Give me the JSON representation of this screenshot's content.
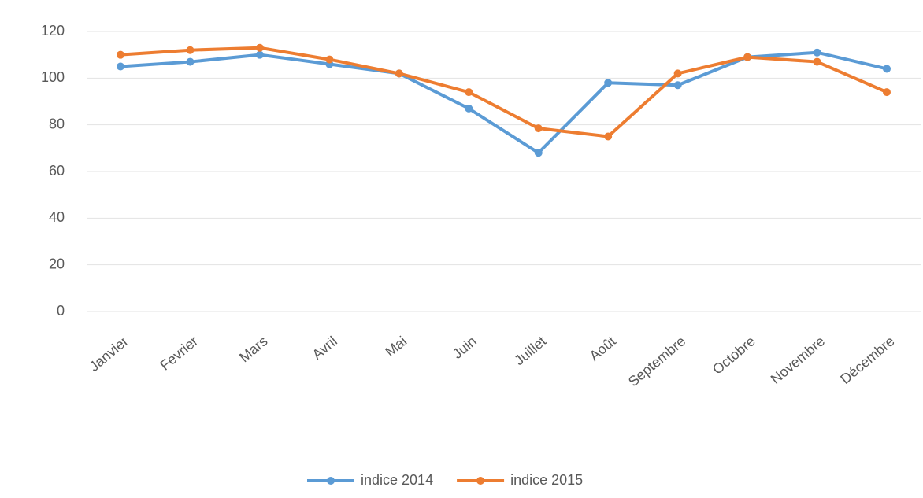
{
  "chart_data": {
    "type": "line",
    "categories": [
      "Janvier",
      "Fevrier",
      "Mars",
      "Avril",
      "Mai",
      "Juin",
      "Juillet",
      "Août",
      "Septembre",
      "Octobre",
      "Novembre",
      "Décembre"
    ],
    "series": [
      {
        "name": "indice 2014",
        "color": "#5b9bd5",
        "values": [
          105,
          107,
          110,
          106,
          102,
          87,
          68,
          98,
          97,
          109,
          111,
          104
        ]
      },
      {
        "name": "indice 2015",
        "color": "#ed7d31",
        "values": [
          110,
          112,
          113,
          108,
          102,
          94,
          78.5,
          75,
          102,
          109,
          107,
          94
        ]
      }
    ],
    "ylim": [
      0,
      120
    ],
    "yticks": [
      0,
      20,
      40,
      60,
      80,
      100,
      120
    ],
    "grid": true,
    "legend": "bottom"
  }
}
